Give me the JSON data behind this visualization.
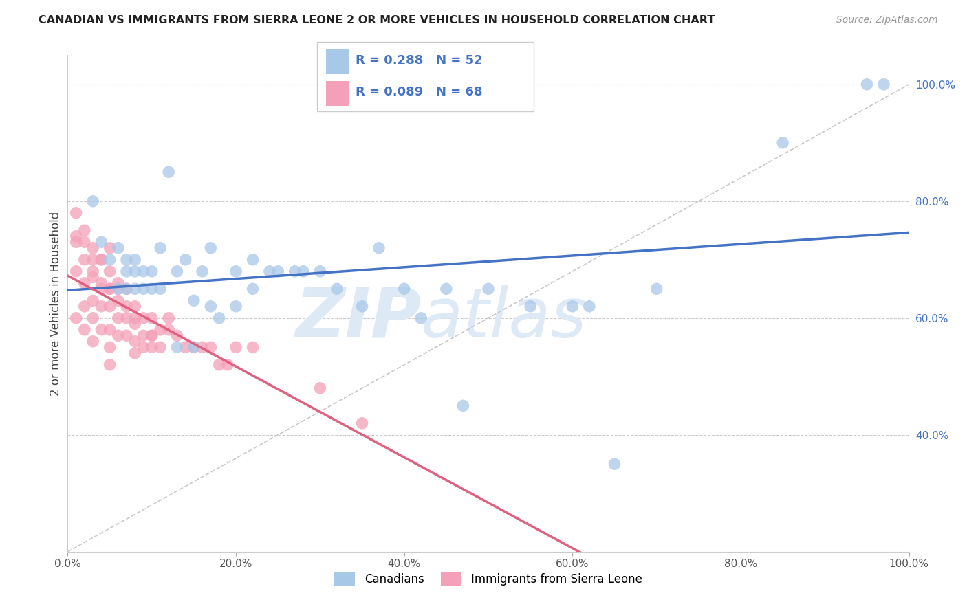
{
  "title": "CANADIAN VS IMMIGRANTS FROM SIERRA LEONE 2 OR MORE VEHICLES IN HOUSEHOLD CORRELATION CHART",
  "source": "Source: ZipAtlas.com",
  "ylabel": "2 or more Vehicles in Household",
  "canadians_R": 0.288,
  "canadians_N": 52,
  "sierraleone_R": 0.089,
  "sierraleone_N": 68,
  "blue_scatter_color": "#a8c8e8",
  "pink_scatter_color": "#f4a0b8",
  "blue_line_color": "#4472c4",
  "pink_line_color": "#e06080",
  "ref_line_color": "#c8c8c8",
  "xlim": [
    0,
    100
  ],
  "ylim": [
    20,
    105
  ],
  "canadians_x": [
    3,
    4,
    5,
    6,
    7,
    7,
    8,
    8,
    9,
    10,
    11,
    12,
    13,
    14,
    15,
    16,
    17,
    18,
    20,
    22,
    24,
    25,
    27,
    28,
    30,
    32,
    35,
    37,
    40,
    42,
    45,
    47,
    50,
    55,
    60,
    62,
    65,
    70,
    17,
    20,
    22,
    6,
    7,
    8,
    9,
    10,
    11,
    15,
    85,
    95,
    97,
    13
  ],
  "canadians_y": [
    80,
    73,
    70,
    72,
    70,
    68,
    70,
    68,
    68,
    68,
    72,
    85,
    68,
    70,
    63,
    68,
    72,
    60,
    68,
    70,
    68,
    68,
    68,
    68,
    68,
    65,
    62,
    72,
    65,
    60,
    65,
    45,
    65,
    62,
    62,
    62,
    35,
    65,
    62,
    62,
    65,
    65,
    65,
    65,
    65,
    65,
    65,
    55,
    90,
    100,
    100,
    55
  ],
  "sierraleone_x": [
    1,
    1,
    1,
    2,
    2,
    2,
    2,
    3,
    3,
    3,
    3,
    3,
    4,
    4,
    4,
    4,
    5,
    5,
    5,
    5,
    5,
    5,
    6,
    6,
    6,
    6,
    7,
    7,
    7,
    7,
    8,
    8,
    8,
    8,
    9,
    9,
    9,
    10,
    10,
    10,
    11,
    11,
    12,
    13,
    14,
    15,
    16,
    17,
    18,
    19,
    20,
    1,
    2,
    3,
    4,
    5,
    6,
    1,
    2,
    3,
    4,
    5,
    8,
    10,
    12,
    22,
    30,
    35
  ],
  "sierraleone_y": [
    78,
    73,
    68,
    73,
    70,
    66,
    62,
    70,
    67,
    63,
    60,
    56,
    70,
    66,
    62,
    58,
    68,
    65,
    62,
    58,
    55,
    52,
    66,
    63,
    60,
    57,
    65,
    62,
    60,
    57,
    62,
    59,
    56,
    54,
    60,
    57,
    55,
    60,
    57,
    55,
    58,
    55,
    58,
    57,
    55,
    55,
    55,
    55,
    52,
    52,
    55,
    60,
    58,
    68,
    65,
    65,
    65,
    74,
    75,
    72,
    70,
    72,
    60,
    57,
    60,
    55,
    48,
    42
  ]
}
